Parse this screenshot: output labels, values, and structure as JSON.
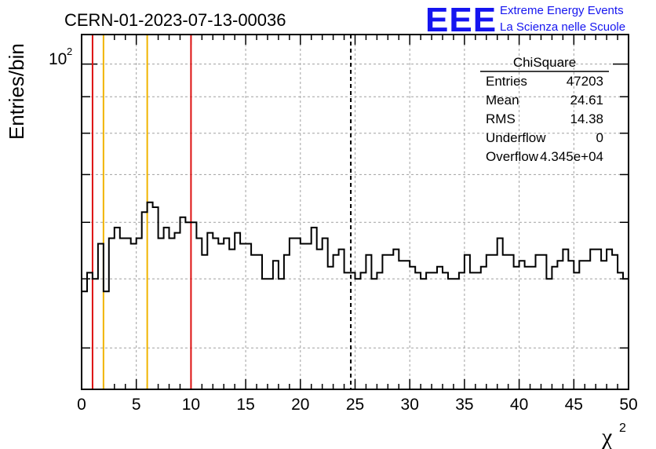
{
  "chart_data": {
    "type": "bar",
    "subtype": "histogram",
    "title": "CERN-01-2023-07-13-00036",
    "xlabel": "χ",
    "xlabel_superscript": "2",
    "ylabel": "Entries/bin",
    "xlim": [
      0,
      50
    ],
    "ylim_log": [
      35,
      110
    ],
    "log_y": true,
    "grid": true,
    "x_ticks": [
      "0",
      "5",
      "10",
      "15",
      "20",
      "25",
      "30",
      "35",
      "40",
      "45",
      "50"
    ],
    "x_tick_values": [
      0,
      5,
      10,
      15,
      20,
      25,
      30,
      35,
      40,
      45,
      50
    ],
    "y_tick_base": "10",
    "y_tick_exp": "2",
    "y_tick_value": 100,
    "bin_width": 0.5,
    "values": [
      48,
      51,
      50,
      56,
      48,
      57,
      59,
      57,
      57,
      56,
      57,
      62,
      64,
      63,
      57,
      59,
      57,
      58,
      61,
      60,
      60,
      57,
      54,
      58,
      57,
      56,
      57,
      55,
      58,
      56,
      56,
      54,
      54,
      50,
      50,
      53,
      50,
      54,
      57,
      57,
      56,
      56,
      59,
      55,
      57,
      52,
      54,
      55,
      51,
      51,
      50,
      51,
      54,
      50,
      51,
      54,
      54,
      55,
      53,
      53,
      52,
      51,
      50,
      51,
      51,
      52,
      51,
      50,
      50,
      51,
      54,
      51,
      51,
      52,
      54,
      54,
      57,
      54,
      54,
      52,
      53,
      52,
      52,
      54,
      54,
      50,
      52,
      53,
      55,
      53,
      51,
      53,
      53,
      55,
      55,
      53,
      55,
      54,
      51,
      50
    ],
    "stats_box": {
      "title": "ChiSquare",
      "rows": [
        {
          "label": "Entries",
          "value": "47203"
        },
        {
          "label": "Mean",
          "value": "24.61"
        },
        {
          "label": "RMS",
          "value": "14.38"
        },
        {
          "label": "Underflow",
          "value": "0"
        },
        {
          "label": "Overflow",
          "value": "4.345e+04"
        }
      ]
    },
    "vertical_lines": [
      {
        "x": 1,
        "color": "#dd1111",
        "style": "solid"
      },
      {
        "x": 2,
        "color": "#f0b400",
        "style": "solid"
      },
      {
        "x": 6,
        "color": "#f0b400",
        "style": "solid"
      },
      {
        "x": 10,
        "color": "#dd1111",
        "style": "solid"
      },
      {
        "x": 24.61,
        "color": "#000000",
        "style": "dashed"
      }
    ]
  },
  "logo": {
    "letters": "EEE",
    "line1": "Extreme Energy Events",
    "line2": "La Scienza nelle Scuole"
  },
  "colors": {
    "logo": "#1515f0",
    "histogram": "#000000"
  }
}
